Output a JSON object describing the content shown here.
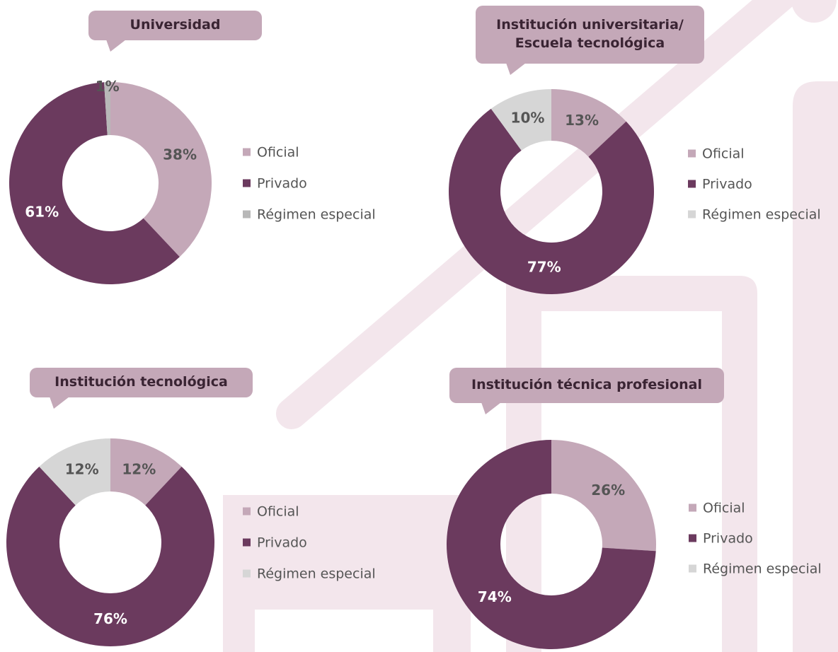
{
  "chart_data": [
    {
      "type": "donut",
      "title": "Universidad",
      "categories": [
        "Oficial",
        "Privado",
        "Régimen especial"
      ],
      "values": [
        38,
        61,
        1
      ],
      "value_labels": [
        "38%",
        "61%",
        "1%"
      ],
      "colors": [
        "#c4a8b8",
        "#6b3a5e",
        "#b8b8b8"
      ]
    },
    {
      "type": "donut",
      "title": "Institución universitaria/\nEscuela tecnológica",
      "categories": [
        "Oficial",
        "Privado",
        "Régimen especial"
      ],
      "values": [
        13,
        77,
        10
      ],
      "value_labels": [
        "13%",
        "77%",
        "10%"
      ],
      "colors": [
        "#c4a8b8",
        "#6b3a5e",
        "#d6d6d6"
      ]
    },
    {
      "type": "donut",
      "title": "Institución tecnológica",
      "categories": [
        "Oficial",
        "Privado",
        "Régimen especial"
      ],
      "values": [
        12,
        76,
        12
      ],
      "value_labels": [
        "12%",
        "76%",
        "12%"
      ],
      "colors": [
        "#c4a8b8",
        "#6b3a5e",
        "#d6d6d6"
      ]
    },
    {
      "type": "donut",
      "title": "Institución técnica profesional",
      "categories": [
        "Oficial",
        "Privado",
        "Régimen especial"
      ],
      "values": [
        26,
        74,
        0
      ],
      "value_labels": [
        "26%",
        "74%",
        null
      ],
      "colors": [
        "#c4a8b8",
        "#6b3a5e",
        "#d6d6d6"
      ]
    }
  ]
}
